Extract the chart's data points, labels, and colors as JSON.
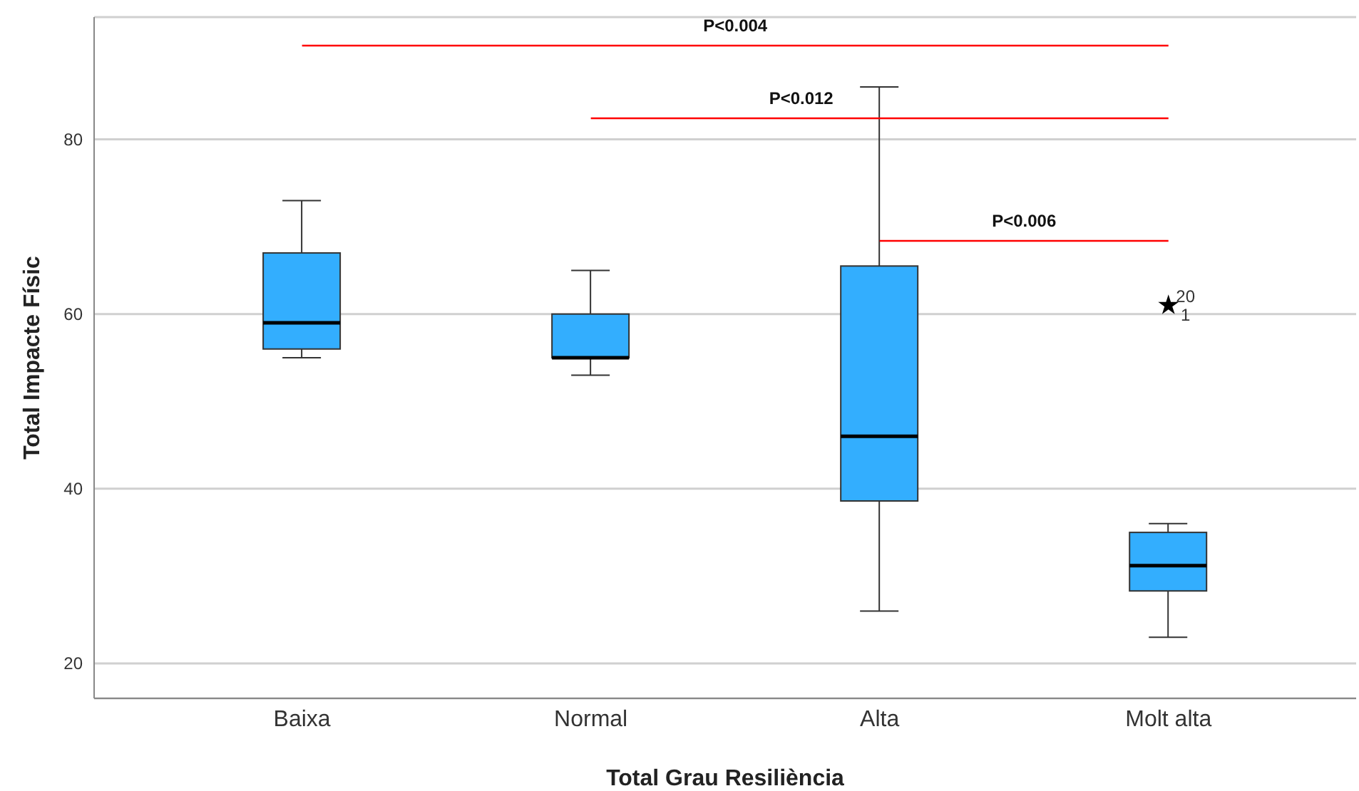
{
  "chart_data": {
    "type": "box",
    "xlabel": "Total Grau Resiliència",
    "ylabel": "Total Impacte Físic",
    "categories": [
      "Baixa",
      "Normal",
      "Alta",
      "Molt alta"
    ],
    "boxes": [
      {
        "low": 55,
        "q1": 56,
        "median": 59,
        "q3": 67,
        "high": 73
      },
      {
        "low": 53,
        "q1": 55,
        "median": 55,
        "q3": 60,
        "high": 65
      },
      {
        "low": 26,
        "q1": 38.6,
        "median": 46,
        "q3": 65.5,
        "high": 86
      },
      {
        "low": 23,
        "q1": 28.3,
        "median": 31.2,
        "q3": 35,
        "high": 36,
        "outliers": [
          61
        ]
      }
    ],
    "color": "#33aefe",
    "ylim": [
      16,
      94
    ],
    "yticks": [
      20,
      40,
      60,
      80
    ],
    "grid": "y",
    "marker": "star",
    "annotations": [
      "P<0.004",
      "P<0.012",
      "P<0.006",
      "20",
      "1"
    ]
  }
}
